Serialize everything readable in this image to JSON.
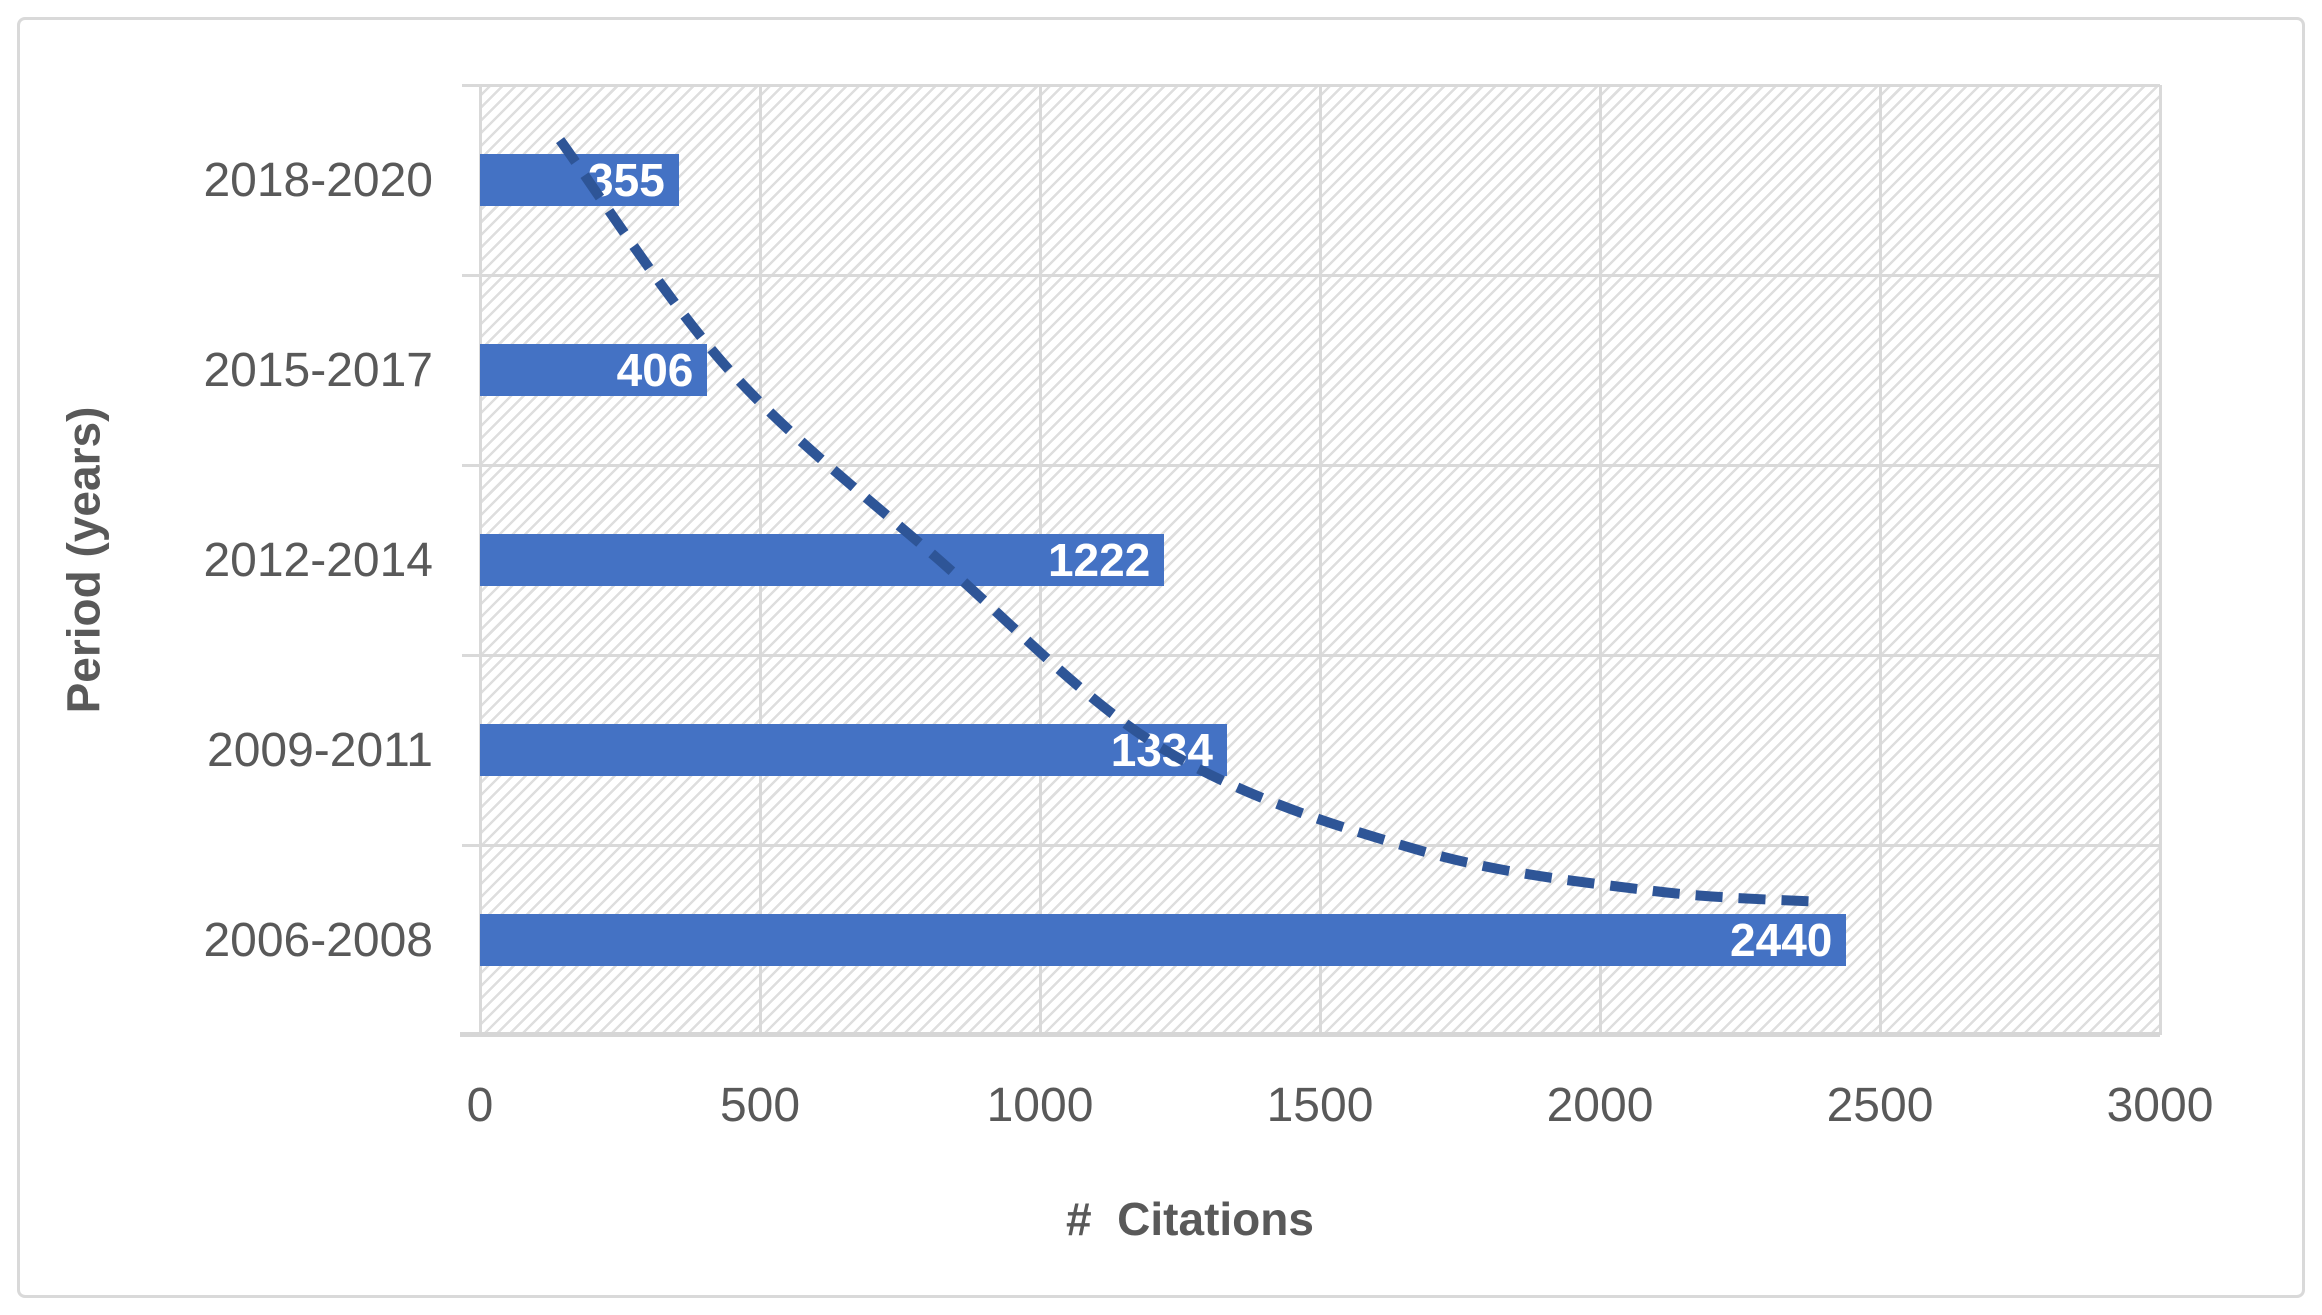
{
  "chart_data": {
    "type": "bar",
    "orientation": "horizontal",
    "title": "",
    "categories": [
      "2018-2020",
      "2015-2017",
      "2012-2014",
      "2009-2011",
      "2006-2008"
    ],
    "values": [
      355,
      406,
      1222,
      1334,
      2440
    ],
    "data_labels": [
      "355",
      "406",
      "1222",
      "1334",
      "2440"
    ],
    "data_label_position": "inside-end",
    "xlabel": "#  Citations",
    "ylabel": "Period (years)",
    "xlim": [
      0,
      3000
    ],
    "xticks": [
      0,
      500,
      1000,
      1500,
      2000,
      2500,
      3000
    ],
    "legend": "none",
    "grid": "major-vertical-and-horizontal",
    "plot_fill": "diagonal-hatch",
    "trendline": {
      "type": "exponential",
      "style": "dashed",
      "points_value_row": [
        [
          143,
          0.29
        ],
        [
          445,
          1.5
        ],
        [
          820,
          2.5
        ],
        [
          1223,
          3.5
        ],
        [
          1680,
          4.03
        ],
        [
          2090,
          4.24
        ],
        [
          2400,
          4.3
        ]
      ]
    }
  },
  "colors": {
    "bar": "#4472c4",
    "bar_label": "#ffffff",
    "trendline": "#2e5597",
    "axis_text": "#595959",
    "axis_title": "#595959",
    "gridline": "#d9d9d9",
    "axis_line": "#d6d6d6",
    "hatch": "#dedede",
    "frame_border": "#d9d9d9",
    "background": "#ffffff"
  }
}
